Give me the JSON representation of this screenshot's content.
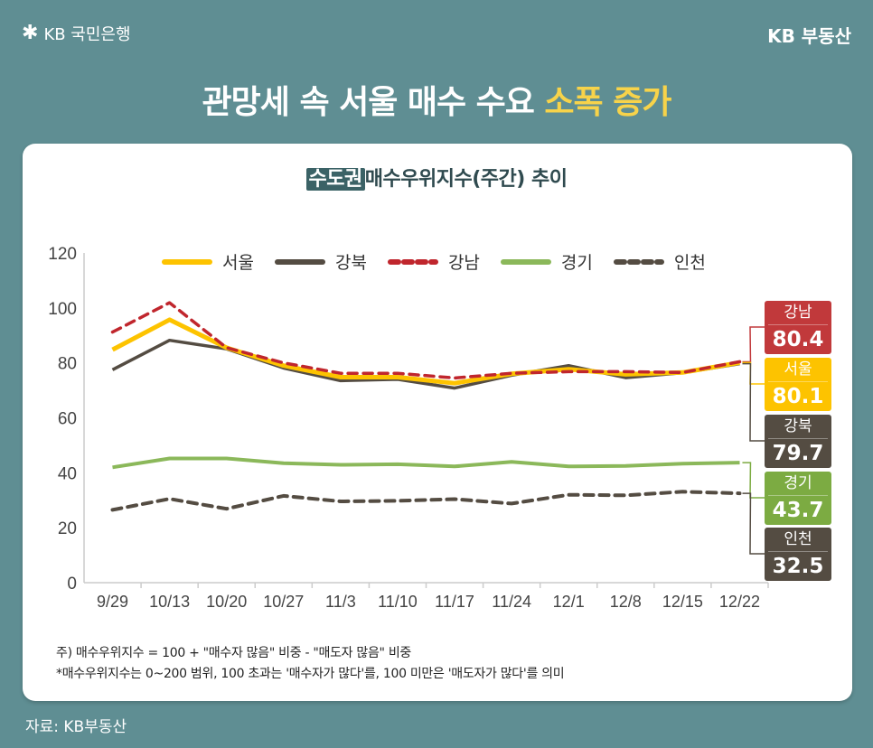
{
  "header": {
    "bank_logo": "KB 국민은행",
    "brand": "KB 부동산"
  },
  "headline": {
    "main": "관망세 속 서울 매수 수요 ",
    "highlight": "소폭 증가"
  },
  "colors": {
    "background": "#5f8e93",
    "highlight": "#f7d34a",
    "seoul": "#fdc300",
    "gangbuk": "#544c42",
    "gangnam": "#c0262d",
    "gyeonggi": "#8bb85a",
    "incheon": "#544c42",
    "gangnam_box": "#c1393b",
    "gyeonggi_box": "#7cab42"
  },
  "chart_data": {
    "type": "line",
    "title_tag": "수도권",
    "title": "매수우위지수(주간) 추이",
    "categories": [
      "9/29",
      "10/13",
      "10/20",
      "10/27",
      "11/3",
      "11/10",
      "11/17",
      "11/24",
      "12/1",
      "12/8",
      "12/15",
      "12/22"
    ],
    "ylim": [
      0,
      120
    ],
    "yticks": [
      0,
      20,
      40,
      60,
      80,
      100,
      120
    ],
    "grid": false,
    "legend_position": "top",
    "series": [
      {
        "name": "서울",
        "style": "solid",
        "color": "#fdc300",
        "values": [
          84.8,
          95.7,
          85.5,
          79.0,
          74.8,
          74.8,
          72.6,
          76.0,
          77.7,
          75.8,
          76.5,
          80.1
        ],
        "last_label": "80.1"
      },
      {
        "name": "강북",
        "style": "solid",
        "color": "#544c42",
        "values": [
          77.5,
          88.2,
          85.1,
          78.1,
          73.5,
          74.0,
          70.8,
          75.5,
          79.0,
          74.6,
          76.4,
          79.7
        ],
        "last_label": "79.7"
      },
      {
        "name": "강남",
        "style": "dashed",
        "color": "#c0262d",
        "values": [
          91.2,
          101.9,
          85.5,
          80.0,
          76.2,
          76.2,
          74.5,
          76.2,
          76.8,
          76.8,
          76.5,
          80.4
        ],
        "last_label": "80.4"
      },
      {
        "name": "경기",
        "style": "solid",
        "color": "#8bb85a",
        "values": [
          42.0,
          45.2,
          45.2,
          43.5,
          42.9,
          43.1,
          42.3,
          44.0,
          42.3,
          42.5,
          43.3,
          43.7
        ],
        "last_label": "43.7"
      },
      {
        "name": "인천",
        "style": "dashed",
        "color": "#544c42",
        "values": [
          26.5,
          30.5,
          26.9,
          31.6,
          29.6,
          29.8,
          30.4,
          28.8,
          32.0,
          31.8,
          33.1,
          32.5
        ],
        "last_label": "32.5"
      }
    ]
  },
  "notes": [
    "주) 매수우위지수 = 100 + \"매수자 많음\" 비중 - \"매도자 많음\" 비중",
    "*매수우위지수는 0~200 범위, 100 초과는 '매수자가 많다'를, 100 미만은 '매도자가 많다'를 의미"
  ],
  "source": "자료: KB부동산"
}
